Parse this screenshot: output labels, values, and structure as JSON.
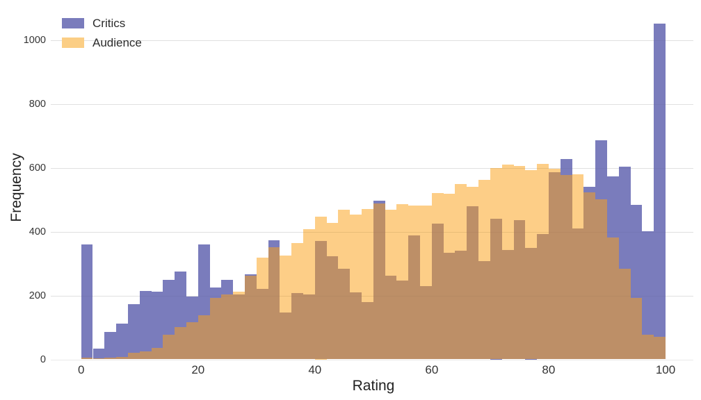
{
  "chart_data": {
    "type": "histogram",
    "title": "",
    "xlabel": "Rating",
    "ylabel": "Frequency",
    "bin_width": 2,
    "bin_starts": [
      0,
      2,
      4,
      6,
      8,
      10,
      12,
      14,
      16,
      18,
      20,
      22,
      24,
      26,
      28,
      30,
      32,
      34,
      36,
      38,
      40,
      42,
      44,
      46,
      48,
      50,
      52,
      54,
      56,
      58,
      60,
      62,
      64,
      66,
      68,
      70,
      72,
      74,
      76,
      78,
      80,
      82,
      84,
      86,
      88,
      90,
      92,
      94,
      96,
      98
    ],
    "series": [
      {
        "name": "Critics",
        "color": "#7A7CBC",
        "values": [
          360,
          33,
          85,
          112,
          174,
          215,
          213,
          250,
          275,
          198,
          360,
          226,
          250,
          204,
          267,
          222,
          373,
          146,
          208,
          204,
          371,
          324,
          284,
          211,
          179,
          497,
          263,
          248,
          389,
          229,
          425,
          335,
          340,
          480,
          308,
          441,
          344,
          437,
          349,
          393,
          587,
          629,
          411,
          542,
          687,
          574,
          605,
          485,
          402,
          1052
        ]
      },
      {
        "name": "Audience",
        "color": "#FBCE85",
        "overlay_color": "rgba(251,162,24,0.52)",
        "values": [
          6,
          3,
          5,
          8,
          20,
          26,
          35,
          77,
          102,
          117,
          139,
          193,
          204,
          213,
          262,
          320,
          351,
          326,
          364,
          408,
          447,
          429,
          469,
          455,
          472,
          488,
          470,
          486,
          483,
          483,
          522,
          520,
          549,
          542,
          564,
          601,
          611,
          607,
          593,
          614,
          598,
          578,
          580,
          524,
          502,
          382,
          284,
          193,
          77,
          70
        ]
      }
    ],
    "xticks": [
      0,
      20,
      40,
      60,
      80,
      100
    ],
    "yticks": [
      0,
      200,
      400,
      600,
      800,
      1000
    ],
    "xlim": [
      0,
      100
    ],
    "ylim": [
      0,
      1100
    ],
    "grid": "horizontal-only",
    "legend_position": "top-left",
    "colors": {
      "background": "#FFFFFF",
      "gridline": "#E9E9E9",
      "gridline_over_bars": "rgba(0,0,0,0.035)",
      "tick_label": "#333333",
      "axis_title": "#222222"
    }
  }
}
